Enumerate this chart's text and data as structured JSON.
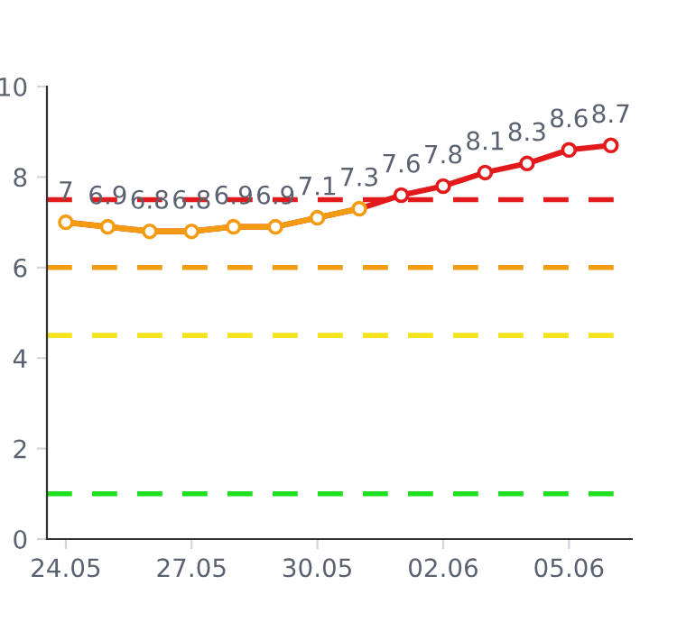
{
  "chart_data": {
    "type": "line",
    "categories": [
      "24.05",
      null,
      null,
      "27.05",
      null,
      null,
      "30.05",
      null,
      null,
      "02.06",
      null,
      null,
      "05.06",
      null
    ],
    "series": [
      {
        "values": [
          7,
          6.9,
          6.8,
          6.8,
          6.9,
          6.9,
          7.1,
          7.3,
          7.6,
          7.8,
          8.1,
          8.3,
          8.6,
          8.7
        ],
        "colors": [
          "#f39c12",
          "#f39c12",
          "#f39c12",
          "#f39c12",
          "#f39c12",
          "#f39c12",
          "#f39c12",
          "#f39c12",
          "#e31a1c",
          "#e31a1c",
          "#e31a1c",
          "#e31a1c",
          "#e31a1c",
          "#e31a1c"
        ]
      }
    ],
    "ylim": [
      0,
      10
    ],
    "yticks": [
      0,
      2,
      4,
      6,
      8,
      10
    ],
    "ref_lines": [
      {
        "axis": "y",
        "value": 7.5,
        "color": "#e31a1c",
        "line_style": "dashed"
      },
      {
        "axis": "y",
        "value": 6,
        "color": "#f39c12",
        "line_style": "dashed"
      },
      {
        "axis": "y",
        "value": 4.5,
        "color": "#f5e31b",
        "line_style": "dashed"
      },
      {
        "axis": "y",
        "value": 1,
        "color": "#1fe01f",
        "line_style": "dashed"
      }
    ],
    "data_labels": true,
    "marker": "circle",
    "grid": false
  }
}
